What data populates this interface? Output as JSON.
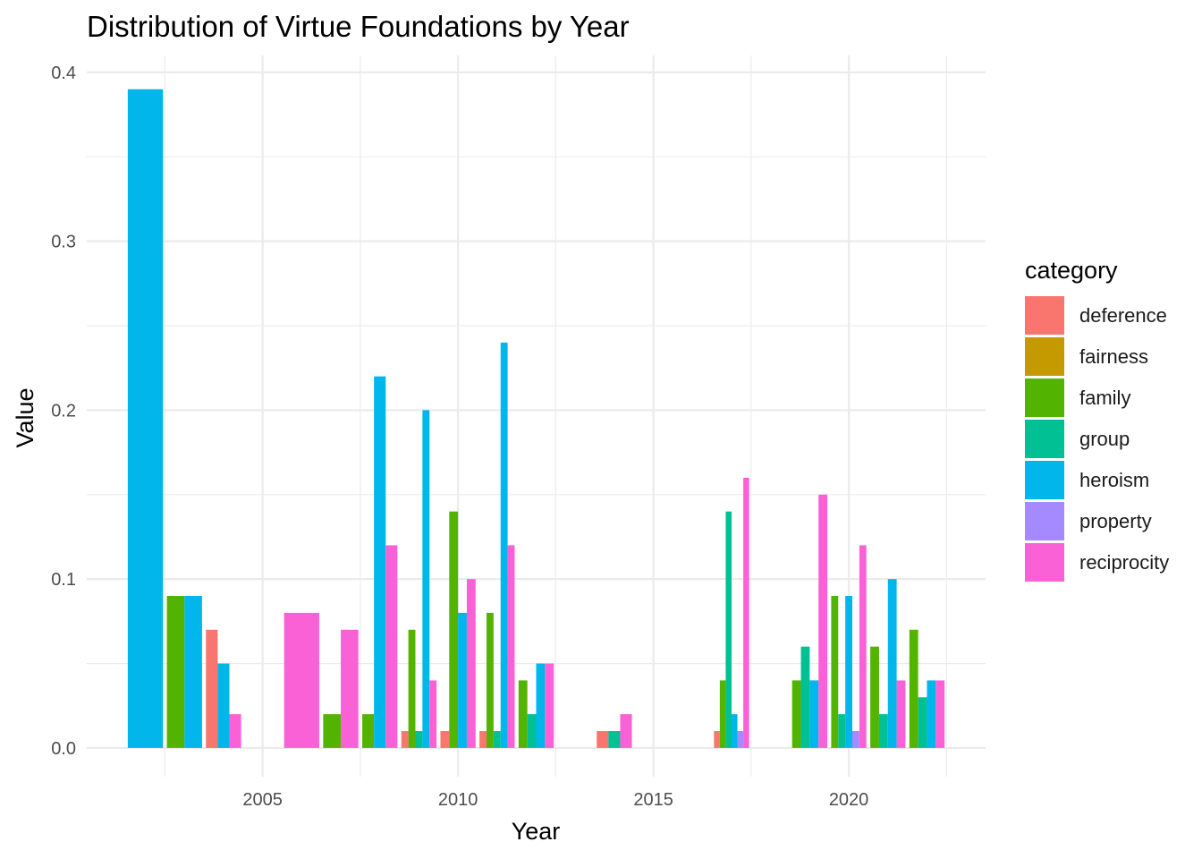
{
  "chart_data": {
    "type": "bar",
    "title": "Distribution of Virtue Foundations by Year",
    "xlabel": "Year",
    "ylabel": "Value",
    "legend_title": "category",
    "legend_position": "right",
    "grid": true,
    "xlim": [
      2000.5,
      2023.5
    ],
    "ylim": [
      -0.017,
      0.41
    ],
    "x_ticks": [
      2005,
      2010,
      2015,
      2020
    ],
    "y_ticks": [
      0.0,
      0.1,
      0.2,
      0.3,
      0.4
    ],
    "y_tick_labels": [
      "0.0",
      "0.1",
      "0.2",
      "0.3",
      "0.4"
    ],
    "categories": [
      "deference",
      "fairness",
      "family",
      "group",
      "heroism",
      "property",
      "reciprocity"
    ],
    "colors": {
      "deference": "#F8766D",
      "fairness": "#C49A00",
      "family": "#53B400",
      "group": "#00C094",
      "heroism": "#00B6EB",
      "property": "#A58AFF",
      "reciprocity": "#FB61D7"
    },
    "data": [
      {
        "year": 2002,
        "category": "heroism",
        "value": 0.39
      },
      {
        "year": 2003,
        "category": "family",
        "value": 0.09
      },
      {
        "year": 2003,
        "category": "heroism",
        "value": 0.09
      },
      {
        "year": 2004,
        "category": "deference",
        "value": 0.07
      },
      {
        "year": 2004,
        "category": "heroism",
        "value": 0.05
      },
      {
        "year": 2004,
        "category": "reciprocity",
        "value": 0.02
      },
      {
        "year": 2006,
        "category": "reciprocity",
        "value": 0.08
      },
      {
        "year": 2007,
        "category": "family",
        "value": 0.02
      },
      {
        "year": 2007,
        "category": "reciprocity",
        "value": 0.07
      },
      {
        "year": 2008,
        "category": "family",
        "value": 0.02
      },
      {
        "year": 2008,
        "category": "heroism",
        "value": 0.22
      },
      {
        "year": 2008,
        "category": "reciprocity",
        "value": 0.12
      },
      {
        "year": 2009,
        "category": "deference",
        "value": 0.01
      },
      {
        "year": 2009,
        "category": "family",
        "value": 0.07
      },
      {
        "year": 2009,
        "category": "group",
        "value": 0.01
      },
      {
        "year": 2009,
        "category": "heroism",
        "value": 0.2
      },
      {
        "year": 2009,
        "category": "reciprocity",
        "value": 0.04
      },
      {
        "year": 2010,
        "category": "deference",
        "value": 0.01
      },
      {
        "year": 2010,
        "category": "family",
        "value": 0.14
      },
      {
        "year": 2010,
        "category": "heroism",
        "value": 0.08
      },
      {
        "year": 2010,
        "category": "reciprocity",
        "value": 0.1
      },
      {
        "year": 2011,
        "category": "deference",
        "value": 0.01
      },
      {
        "year": 2011,
        "category": "family",
        "value": 0.08
      },
      {
        "year": 2011,
        "category": "group",
        "value": 0.01
      },
      {
        "year": 2011,
        "category": "heroism",
        "value": 0.24
      },
      {
        "year": 2011,
        "category": "reciprocity",
        "value": 0.12
      },
      {
        "year": 2012,
        "category": "family",
        "value": 0.04
      },
      {
        "year": 2012,
        "category": "group",
        "value": 0.02
      },
      {
        "year": 2012,
        "category": "heroism",
        "value": 0.05
      },
      {
        "year": 2012,
        "category": "reciprocity",
        "value": 0.05
      },
      {
        "year": 2014,
        "category": "deference",
        "value": 0.01
      },
      {
        "year": 2014,
        "category": "group",
        "value": 0.01
      },
      {
        "year": 2014,
        "category": "reciprocity",
        "value": 0.02
      },
      {
        "year": 2017,
        "category": "deference",
        "value": 0.01
      },
      {
        "year": 2017,
        "category": "family",
        "value": 0.04
      },
      {
        "year": 2017,
        "category": "group",
        "value": 0.14
      },
      {
        "year": 2017,
        "category": "heroism",
        "value": 0.02
      },
      {
        "year": 2017,
        "category": "property",
        "value": 0.01
      },
      {
        "year": 2017,
        "category": "reciprocity",
        "value": 0.16
      },
      {
        "year": 2019,
        "category": "family",
        "value": 0.04
      },
      {
        "year": 2019,
        "category": "group",
        "value": 0.06
      },
      {
        "year": 2019,
        "category": "heroism",
        "value": 0.04
      },
      {
        "year": 2019,
        "category": "reciprocity",
        "value": 0.15
      },
      {
        "year": 2020,
        "category": "family",
        "value": 0.09
      },
      {
        "year": 2020,
        "category": "group",
        "value": 0.02
      },
      {
        "year": 2020,
        "category": "heroism",
        "value": 0.09
      },
      {
        "year": 2020,
        "category": "property",
        "value": 0.01
      },
      {
        "year": 2020,
        "category": "reciprocity",
        "value": 0.12
      },
      {
        "year": 2021,
        "category": "family",
        "value": 0.06
      },
      {
        "year": 2021,
        "category": "group",
        "value": 0.02
      },
      {
        "year": 2021,
        "category": "heroism",
        "value": 0.1
      },
      {
        "year": 2021,
        "category": "reciprocity",
        "value": 0.04
      },
      {
        "year": 2022,
        "category": "family",
        "value": 0.07
      },
      {
        "year": 2022,
        "category": "group",
        "value": 0.03
      },
      {
        "year": 2022,
        "category": "heroism",
        "value": 0.04
      },
      {
        "year": 2022,
        "category": "reciprocity",
        "value": 0.04
      }
    ]
  }
}
